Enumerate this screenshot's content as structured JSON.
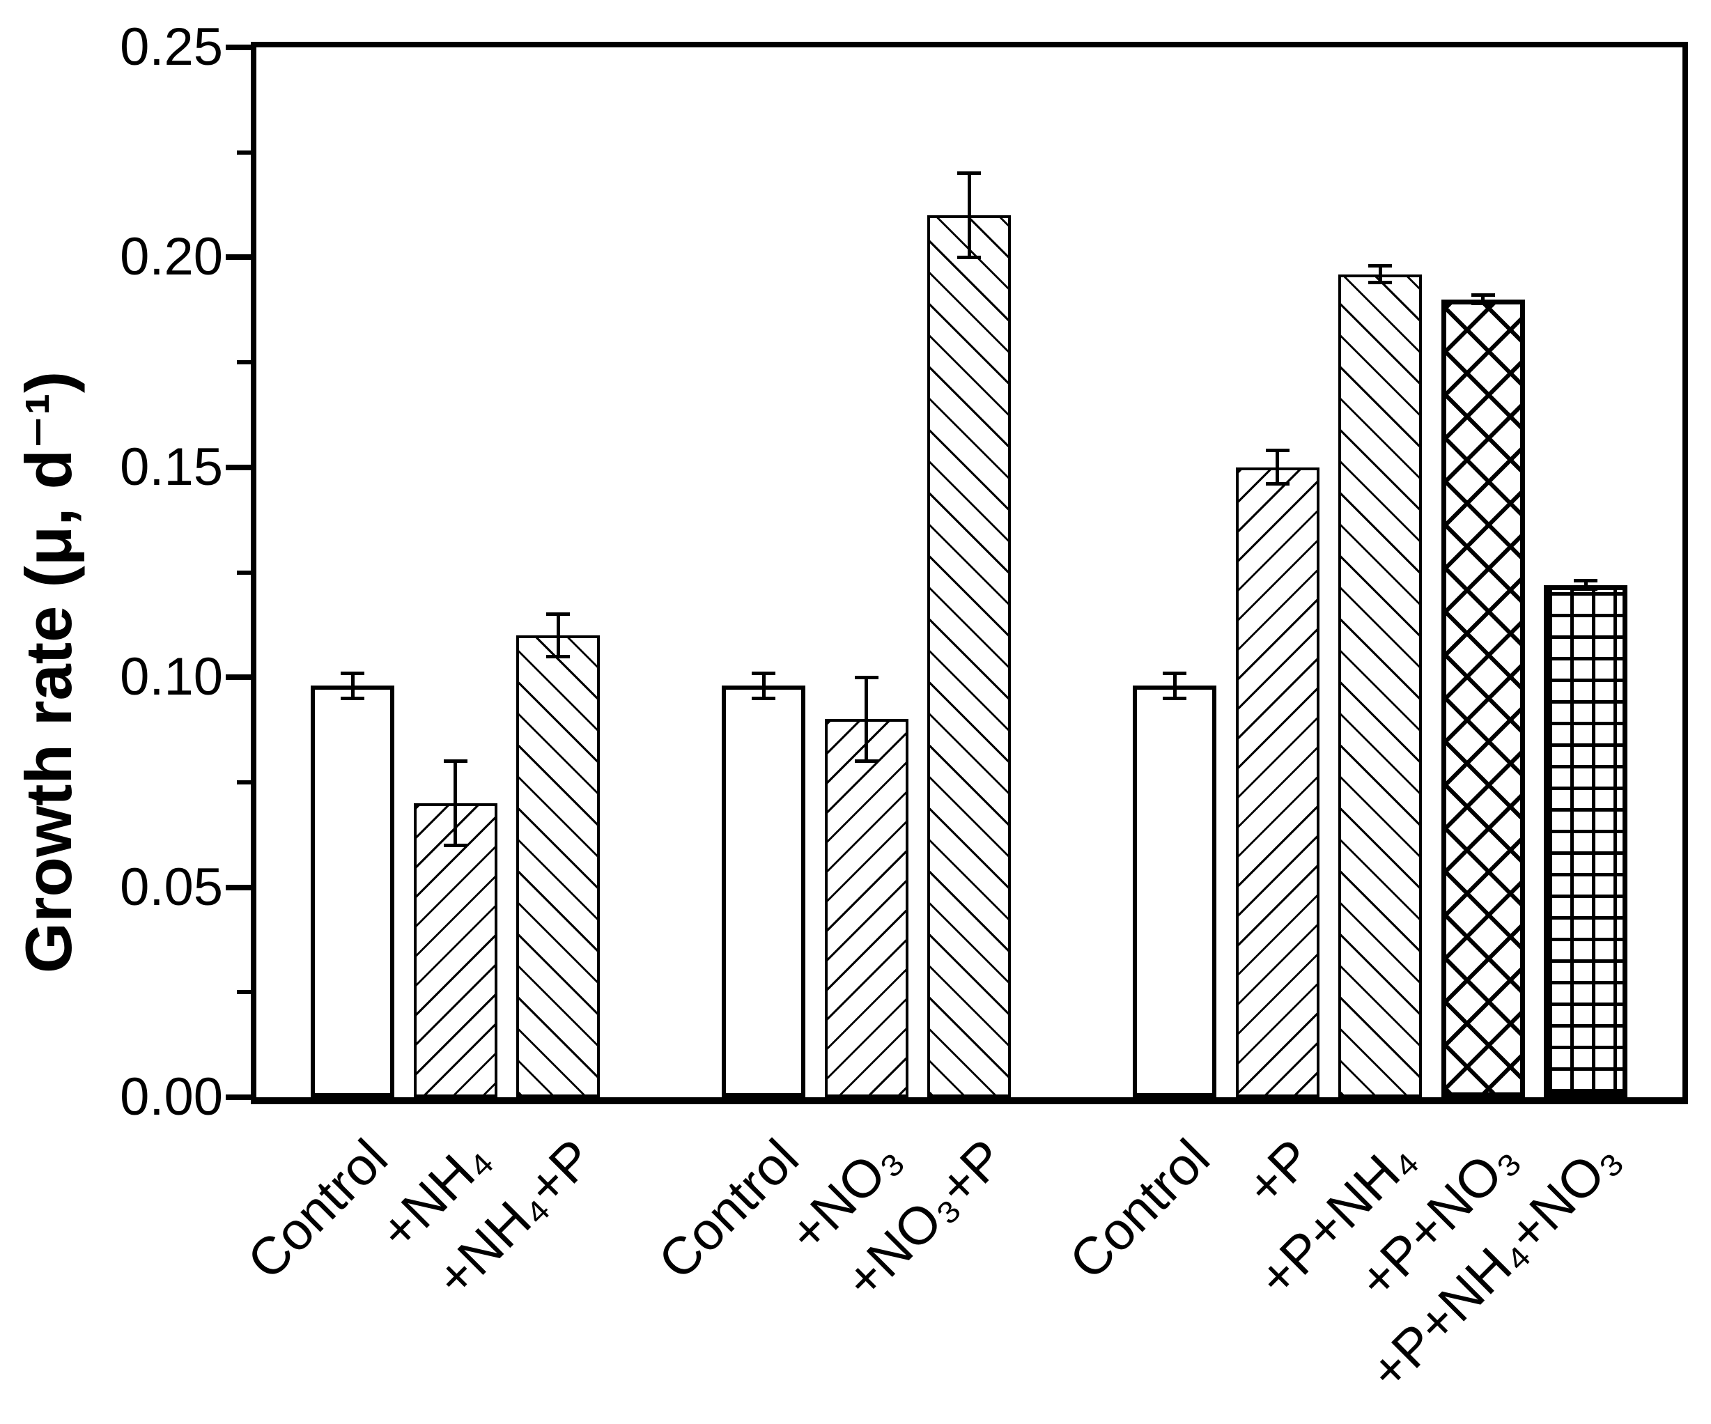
{
  "chart_data": {
    "type": "bar",
    "title": "",
    "xlabel": "",
    "ylabel": "Growth rate (μ, d⁻¹)",
    "ylim": [
      0,
      0.25
    ],
    "yticks": [
      0,
      0.05,
      0.1,
      0.15,
      0.2,
      0.25
    ],
    "ytick_labels": [
      "0.00",
      "0.05",
      "0.10",
      "0.15",
      "0.20",
      "0.25"
    ],
    "y_minor_ticks": [
      0.025,
      0.075,
      0.125,
      0.175,
      0.225
    ],
    "grid": false,
    "legend": "none",
    "colors": {
      "bar_fill": "#ffffff",
      "bar_edge": "#000000",
      "axis": "#000000",
      "text": "#000000"
    },
    "bars": [
      {
        "label": "Control",
        "value": 0.098,
        "error": 0.003,
        "hatch": "none",
        "group": 1
      },
      {
        "label": "+NH₄",
        "value": 0.07,
        "error": 0.01,
        "hatch": "diagonal-up",
        "group": 1
      },
      {
        "label": "+NH₄+P",
        "value": 0.11,
        "error": 0.005,
        "hatch": "diagonal-down",
        "group": 1
      },
      {
        "label": "Control",
        "value": 0.098,
        "error": 0.003,
        "hatch": "none",
        "group": 2
      },
      {
        "label": "+NO₃",
        "value": 0.09,
        "error": 0.01,
        "hatch": "diagonal-up",
        "group": 2
      },
      {
        "label": "+NO₃+P",
        "value": 0.21,
        "error": 0.01,
        "hatch": "diagonal-down",
        "group": 2
      },
      {
        "label": "Control",
        "value": 0.098,
        "error": 0.003,
        "hatch": "none",
        "group": 3
      },
      {
        "label": "+P",
        "value": 0.15,
        "error": 0.004,
        "hatch": "diagonal-up",
        "group": 3
      },
      {
        "label": "+P+NH₄",
        "value": 0.196,
        "error": 0.002,
        "hatch": "diagonal-down",
        "group": 3
      },
      {
        "label": "+P+NO₃",
        "value": 0.19,
        "error": 0.001,
        "hatch": "cross-diagonal",
        "group": 3
      },
      {
        "label": "+P+NH₄+NO₃",
        "value": 0.122,
        "error": 0.001,
        "hatch": "grid",
        "group": 3
      }
    ]
  }
}
